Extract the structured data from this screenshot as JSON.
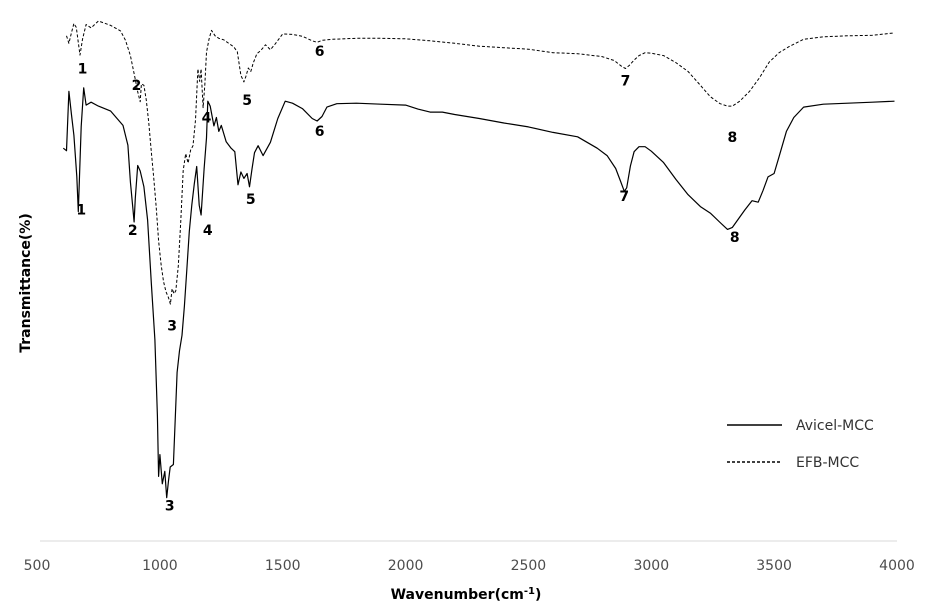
{
  "chart_data": {
    "type": "line",
    "title": "",
    "xlabel_main": "Wavenumber(cm",
    "xlabel_sup": "-1",
    "xlabel_tail": ")",
    "ylabel": "Transmittance(%)",
    "xlim": [
      500,
      4000
    ],
    "xticks": [
      500,
      1000,
      1500,
      2000,
      2500,
      3000,
      3500,
      4000
    ],
    "ylim": [
      0,
      100
    ],
    "grid": false,
    "legend_position": "bottom-right",
    "line_color": "#000000",
    "series": [
      {
        "name": "Avicel-MCC",
        "style": "solid",
        "points": [
          [
            607,
            74.1
          ],
          [
            620,
            73.6
          ],
          [
            630,
            85.6
          ],
          [
            640,
            81.0
          ],
          [
            650,
            76.7
          ],
          [
            662,
            68.4
          ],
          [
            668,
            61.3
          ],
          [
            680,
            78.5
          ],
          [
            690,
            86.3
          ],
          [
            700,
            82.8
          ],
          [
            720,
            83.4
          ],
          [
            750,
            82.6
          ],
          [
            800,
            81.6
          ],
          [
            850,
            78.7
          ],
          [
            870,
            74.7
          ],
          [
            880,
            67.3
          ],
          [
            890,
            62.1
          ],
          [
            895,
            59.2
          ],
          [
            900,
            64.0
          ],
          [
            910,
            70.6
          ],
          [
            920,
            69.5
          ],
          [
            935,
            66.3
          ],
          [
            950,
            59.6
          ],
          [
            965,
            46.9
          ],
          [
            980,
            35.4
          ],
          [
            990,
            20.1
          ],
          [
            995,
            7.8
          ],
          [
            1000,
            12.2
          ],
          [
            1010,
            6.3
          ],
          [
            1020,
            8.8
          ],
          [
            1028,
            3.5
          ],
          [
            1035,
            6.9
          ],
          [
            1042,
            9.7
          ],
          [
            1055,
            10.2
          ],
          [
            1063,
            19.7
          ],
          [
            1070,
            28.8
          ],
          [
            1080,
            33.2
          ],
          [
            1090,
            36.3
          ],
          [
            1100,
            42.2
          ],
          [
            1110,
            49.8
          ],
          [
            1120,
            57.3
          ],
          [
            1130,
            62.6
          ],
          [
            1140,
            66.9
          ],
          [
            1150,
            70.4
          ],
          [
            1160,
            62.6
          ],
          [
            1168,
            60.6
          ],
          [
            1180,
            69.9
          ],
          [
            1190,
            76.2
          ],
          [
            1195,
            83.6
          ],
          [
            1205,
            82.6
          ],
          [
            1220,
            78.6
          ],
          [
            1230,
            80.3
          ],
          [
            1240,
            77.5
          ],
          [
            1250,
            78.7
          ],
          [
            1270,
            75.4
          ],
          [
            1290,
            74.1
          ],
          [
            1305,
            73.4
          ],
          [
            1318,
            66.7
          ],
          [
            1330,
            69.3
          ],
          [
            1342,
            68.0
          ],
          [
            1355,
            69.0
          ],
          [
            1365,
            66.3
          ],
          [
            1375,
            69.9
          ],
          [
            1385,
            73.2
          ],
          [
            1400,
            74.6
          ],
          [
            1420,
            72.6
          ],
          [
            1450,
            75.3
          ],
          [
            1480,
            80.1
          ],
          [
            1510,
            83.6
          ],
          [
            1540,
            83.2
          ],
          [
            1580,
            82.1
          ],
          [
            1620,
            80.1
          ],
          [
            1640,
            79.6
          ],
          [
            1660,
            80.5
          ],
          [
            1680,
            82.4
          ],
          [
            1720,
            83.1
          ],
          [
            1800,
            83.2
          ],
          [
            1900,
            83.0
          ],
          [
            2000,
            82.8
          ],
          [
            2050,
            82.0
          ],
          [
            2100,
            81.4
          ],
          [
            2150,
            81.4
          ],
          [
            2200,
            80.9
          ],
          [
            2300,
            80.1
          ],
          [
            2400,
            79.2
          ],
          [
            2500,
            78.4
          ],
          [
            2600,
            77.3
          ],
          [
            2700,
            76.4
          ],
          [
            2780,
            74.1
          ],
          [
            2820,
            72.6
          ],
          [
            2855,
            70.0
          ],
          [
            2875,
            67.4
          ],
          [
            2890,
            65.4
          ],
          [
            2900,
            66.1
          ],
          [
            2915,
            70.5
          ],
          [
            2930,
            73.4
          ],
          [
            2950,
            74.4
          ],
          [
            2975,
            74.4
          ],
          [
            3000,
            73.5
          ],
          [
            3050,
            71.2
          ],
          [
            3100,
            67.8
          ],
          [
            3150,
            64.7
          ],
          [
            3200,
            62.3
          ],
          [
            3240,
            61.0
          ],
          [
            3280,
            59.1
          ],
          [
            3310,
            57.7
          ],
          [
            3330,
            58.1
          ],
          [
            3350,
            59.5
          ],
          [
            3380,
            61.6
          ],
          [
            3410,
            63.5
          ],
          [
            3435,
            63.2
          ],
          [
            3455,
            65.6
          ],
          [
            3475,
            68.3
          ],
          [
            3500,
            69.0
          ],
          [
            3520,
            72.4
          ],
          [
            3550,
            77.5
          ],
          [
            3580,
            80.3
          ],
          [
            3620,
            82.4
          ],
          [
            3700,
            83.0
          ],
          [
            3800,
            83.2
          ],
          [
            3900,
            83.4
          ],
          [
            3990,
            83.6
          ]
        ]
      },
      {
        "name": "EFB-MCC",
        "style": "dashed",
        "points": [
          [
            620,
            96.8
          ],
          [
            630,
            95.3
          ],
          [
            640,
            97.4
          ],
          [
            650,
            99.3
          ],
          [
            660,
            98.5
          ],
          [
            670,
            94.7
          ],
          [
            675,
            92.9
          ],
          [
            685,
            96.1
          ],
          [
            700,
            99.1
          ],
          [
            720,
            98.4
          ],
          [
            750,
            99.8
          ],
          [
            800,
            98.9
          ],
          [
            840,
            97.8
          ],
          [
            860,
            95.9
          ],
          [
            880,
            92.8
          ],
          [
            900,
            88.0
          ],
          [
            910,
            85.5
          ],
          [
            920,
            83.5
          ],
          [
            925,
            87.1
          ],
          [
            935,
            86.8
          ],
          [
            945,
            83.8
          ],
          [
            955,
            79.2
          ],
          [
            965,
            73.4
          ],
          [
            975,
            68.2
          ],
          [
            985,
            62.2
          ],
          [
            995,
            55.4
          ],
          [
            1005,
            50.6
          ],
          [
            1015,
            47.2
          ],
          [
            1025,
            45.1
          ],
          [
            1035,
            43.9
          ],
          [
            1043,
            42.6
          ],
          [
            1050,
            45.7
          ],
          [
            1058,
            44.7
          ],
          [
            1065,
            45.3
          ],
          [
            1075,
            50.3
          ],
          [
            1085,
            59.1
          ],
          [
            1095,
            69.6
          ],
          [
            1105,
            73.0
          ],
          [
            1115,
            71.1
          ],
          [
            1125,
            73.7
          ],
          [
            1135,
            74.6
          ],
          [
            1145,
            79.8
          ],
          [
            1155,
            90.1
          ],
          [
            1162,
            87.6
          ],
          [
            1168,
            90.1
          ],
          [
            1176,
            82.3
          ],
          [
            1183,
            86.8
          ],
          [
            1190,
            93.5
          ],
          [
            1200,
            96.1
          ],
          [
            1210,
            97.9
          ],
          [
            1225,
            96.8
          ],
          [
            1240,
            96.3
          ],
          [
            1260,
            96.0
          ],
          [
            1280,
            95.3
          ],
          [
            1300,
            94.6
          ],
          [
            1315,
            93.6
          ],
          [
            1330,
            88.8
          ],
          [
            1342,
            87.5
          ],
          [
            1350,
            88.6
          ],
          [
            1360,
            90.3
          ],
          [
            1370,
            89.6
          ],
          [
            1380,
            91.3
          ],
          [
            1395,
            93.2
          ],
          [
            1410,
            93.8
          ],
          [
            1430,
            95.0
          ],
          [
            1450,
            94.0
          ],
          [
            1470,
            95.2
          ],
          [
            1500,
            97.2
          ],
          [
            1540,
            97.1
          ],
          [
            1580,
            96.7
          ],
          [
            1620,
            95.8
          ],
          [
            1640,
            95.5
          ],
          [
            1660,
            95.9
          ],
          [
            1700,
            96.1
          ],
          [
            1800,
            96.3
          ],
          [
            1900,
            96.3
          ],
          [
            2000,
            96.2
          ],
          [
            2100,
            95.8
          ],
          [
            2200,
            95.3
          ],
          [
            2300,
            94.7
          ],
          [
            2400,
            94.4
          ],
          [
            2500,
            94.1
          ],
          [
            2600,
            93.4
          ],
          [
            2700,
            93.2
          ],
          [
            2800,
            92.6
          ],
          [
            2850,
            91.8
          ],
          [
            2880,
            90.6
          ],
          [
            2895,
            90.2
          ],
          [
            2910,
            90.8
          ],
          [
            2930,
            91.9
          ],
          [
            2950,
            92.8
          ],
          [
            2975,
            93.4
          ],
          [
            3000,
            93.3
          ],
          [
            3050,
            92.8
          ],
          [
            3100,
            91.4
          ],
          [
            3150,
            89.6
          ],
          [
            3200,
            86.8
          ],
          [
            3240,
            84.5
          ],
          [
            3280,
            83.1
          ],
          [
            3310,
            82.6
          ],
          [
            3330,
            82.6
          ],
          [
            3360,
            83.6
          ],
          [
            3400,
            85.6
          ],
          [
            3440,
            88.3
          ],
          [
            3480,
            91.5
          ],
          [
            3520,
            93.4
          ],
          [
            3560,
            94.6
          ],
          [
            3620,
            96.1
          ],
          [
            3700,
            96.6
          ],
          [
            3800,
            96.8
          ],
          [
            3900,
            96.9
          ],
          [
            3990,
            97.4
          ]
        ]
      }
    ],
    "peak_labels": [
      {
        "text": "1",
        "x": 680,
        "y": 60.7,
        "series": "Avicel-MCC"
      },
      {
        "text": "2",
        "x": 890,
        "y": 56.6,
        "series": "Avicel-MCC"
      },
      {
        "text": "3",
        "x": 1040,
        "y": 0.9,
        "series": "Avicel-MCC"
      },
      {
        "text": "3",
        "x": 1050,
        "y": 37.3,
        "series": "Avicel-MCC"
      },
      {
        "text": "4",
        "x": 1195,
        "y": 56.6,
        "series": "Avicel-MCC"
      },
      {
        "text": "5",
        "x": 1370,
        "y": 62.8,
        "series": "Avicel-MCC"
      },
      {
        "text": "6",
        "x": 1650,
        "y": 76.6,
        "series": "Avicel-MCC"
      },
      {
        "text": "7",
        "x": 2890,
        "y": 63.4,
        "series": "Avicel-MCC"
      },
      {
        "text": "8",
        "x": 3340,
        "y": 55.2,
        "series": "Avicel-MCC"
      },
      {
        "text": "1",
        "x": 685,
        "y": 89.2,
        "series": "EFB-MCC"
      },
      {
        "text": "2",
        "x": 905,
        "y": 85.9,
        "series": "EFB-MCC"
      },
      {
        "text": "4",
        "x": 1190,
        "y": 79.3,
        "series": "EFB-MCC"
      },
      {
        "text": "5",
        "x": 1355,
        "y": 82.8,
        "series": "EFB-MCC"
      },
      {
        "text": "6",
        "x": 1650,
        "y": 92.7,
        "series": "EFB-MCC"
      },
      {
        "text": "7",
        "x": 2895,
        "y": 86.8,
        "series": "EFB-MCC"
      },
      {
        "text": "8",
        "x": 3330,
        "y": 75.4,
        "series": "EFB-MCC"
      }
    ]
  }
}
